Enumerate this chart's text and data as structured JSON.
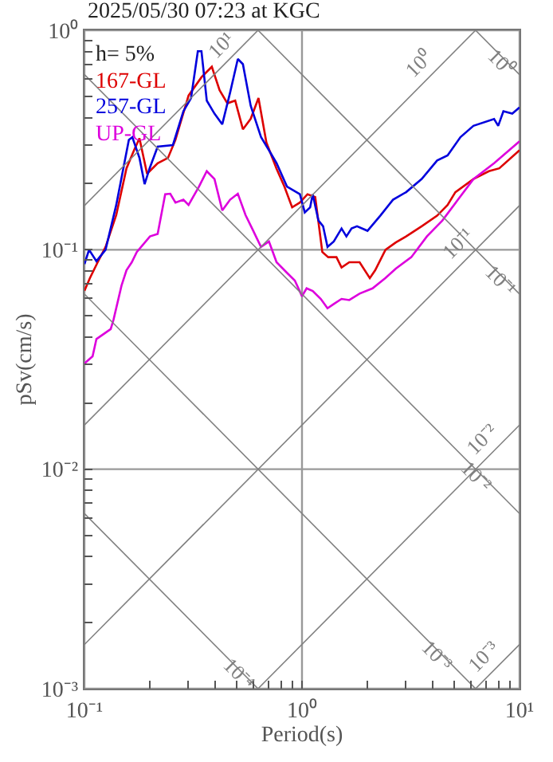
{
  "chart_data": {
    "type": "line",
    "title": "2025/05/30 07:23 at KGC",
    "xlabel": "Period(s)",
    "ylabel": "pSv(cm/s)",
    "annotations": [
      "h= 5%"
    ],
    "log": "xy",
    "grid": true,
    "legend": "top left",
    "xlim": [
      0.1,
      10
    ],
    "ylim": [
      0.001,
      1
    ],
    "xticks": [
      {
        "value": 0.1,
        "label": "10⁻¹"
      },
      {
        "value": 0.2,
        "label": null
      },
      {
        "value": 0.3,
        "label": null
      },
      {
        "value": 0.4,
        "label": null
      },
      {
        "value": 0.5,
        "label": null
      },
      {
        "value": 0.6,
        "label": null
      },
      {
        "value": 0.7,
        "label": null
      },
      {
        "value": 0.8,
        "label": null
      },
      {
        "value": 0.9,
        "label": null
      },
      {
        "value": 1,
        "label": "10⁰"
      },
      {
        "value": 2,
        "label": null
      },
      {
        "value": 3,
        "label": null
      },
      {
        "value": 4,
        "label": null
      },
      {
        "value": 5,
        "label": null
      },
      {
        "value": 6,
        "label": null
      },
      {
        "value": 7,
        "label": null
      },
      {
        "value": 8,
        "label": null
      },
      {
        "value": 9,
        "label": null
      },
      {
        "value": 10,
        "label": "10¹"
      }
    ],
    "yticks": [
      {
        "value": 0.001,
        "label": "10⁻³"
      },
      {
        "value": 0.002,
        "label": null
      },
      {
        "value": 0.003,
        "label": null
      },
      {
        "value": 0.004,
        "label": null
      },
      {
        "value": 0.005,
        "label": null
      },
      {
        "value": 0.006,
        "label": null
      },
      {
        "value": 0.007,
        "label": null
      },
      {
        "value": 0.008,
        "label": null
      },
      {
        "value": 0.009,
        "label": null
      },
      {
        "value": 0.01,
        "label": "10⁻²"
      },
      {
        "value": 0.02,
        "label": null
      },
      {
        "value": 0.03,
        "label": null
      },
      {
        "value": 0.04,
        "label": null
      },
      {
        "value": 0.05,
        "label": null
      },
      {
        "value": 0.06,
        "label": null
      },
      {
        "value": 0.07,
        "label": null
      },
      {
        "value": 0.08,
        "label": null
      },
      {
        "value": 0.09,
        "label": null
      },
      {
        "value": 0.1,
        "label": "10⁻¹"
      },
      {
        "value": 0.2,
        "label": null
      },
      {
        "value": 0.3,
        "label": null
      },
      {
        "value": 0.4,
        "label": null
      },
      {
        "value": 0.5,
        "label": null
      },
      {
        "value": 0.6,
        "label": null
      },
      {
        "value": 0.7,
        "label": null
      },
      {
        "value": 0.8,
        "label": null
      },
      {
        "value": 0.9,
        "label": null
      },
      {
        "value": 1,
        "label": "10⁰"
      }
    ],
    "series": [
      {
        "name": "167-GL",
        "color": "#dd0000",
        "x": [
          0.1,
          0.106,
          0.115,
          0.125,
          0.14,
          0.156,
          0.169,
          0.179,
          0.194,
          0.217,
          0.242,
          0.262,
          0.301,
          0.345,
          0.385,
          0.418,
          0.454,
          0.493,
          0.535,
          0.581,
          0.631,
          0.686,
          0.764,
          0.83,
          0.901,
          0.977,
          1.06,
          1.15,
          1.24,
          1.32,
          1.44,
          1.52,
          1.65,
          1.84,
          2.05,
          2.17,
          2.42,
          2.7,
          3.01,
          3.55,
          4.18,
          4.67,
          5.07,
          6.14,
          7.23,
          8.07,
          10
        ],
        "values": [
          0.065,
          0.0744,
          0.0877,
          0.103,
          0.144,
          0.235,
          0.284,
          0.322,
          0.222,
          0.248,
          0.262,
          0.317,
          0.504,
          0.611,
          0.682,
          0.533,
          0.465,
          0.478,
          0.354,
          0.395,
          0.491,
          0.308,
          0.234,
          0.194,
          0.156,
          0.164,
          0.179,
          0.174,
          0.0977,
          0.0925,
          0.0925,
          0.083,
          0.0877,
          0.0877,
          0.0743,
          0.0807,
          0.1,
          0.108,
          0.115,
          0.128,
          0.143,
          0.16,
          0.183,
          0.21,
          0.228,
          0.235,
          0.284
        ]
      },
      {
        "name": "257-GL",
        "color": "#0000dd",
        "x": [
          0.1,
          0.105,
          0.1135,
          0.125,
          0.14,
          0.16,
          0.166,
          0.179,
          0.189,
          0.199,
          0.217,
          0.255,
          0.285,
          0.309,
          0.332,
          0.345,
          0.365,
          0.396,
          0.43,
          0.467,
          0.507,
          0.535,
          0.581,
          0.648,
          0.705,
          0.764,
          0.853,
          0.978,
          1.03,
          1.09,
          1.12,
          1.19,
          1.25,
          1.31,
          1.4,
          1.52,
          1.6,
          1.69,
          1.79,
          2.0,
          2.29,
          2.62,
          3.01,
          3.55,
          4.18,
          4.67,
          5.35,
          6.14,
          7.64,
          7.98,
          8.43,
          9.26,
          10
        ],
        "values": [
          0.086,
          0.1,
          0.0887,
          0.1,
          0.16,
          0.317,
          0.326,
          0.262,
          0.199,
          0.234,
          0.295,
          0.3,
          0.428,
          0.491,
          0.803,
          0.803,
          0.478,
          0.417,
          0.373,
          0.519,
          0.74,
          0.701,
          0.453,
          0.326,
          0.284,
          0.248,
          0.194,
          0.179,
          0.148,
          0.156,
          0.179,
          0.136,
          0.128,
          0.103,
          0.109,
          0.125,
          0.115,
          0.125,
          0.128,
          0.122,
          0.143,
          0.169,
          0.183,
          0.21,
          0.255,
          0.269,
          0.326,
          0.367,
          0.394,
          0.367,
          0.428,
          0.417,
          0.445
        ]
      },
      {
        "name": "UP-GL",
        "color": "#dd00dd",
        "x": [
          0.1,
          0.109,
          0.1135,
          0.132,
          0.136,
          0.148,
          0.156,
          0.165,
          0.174,
          0.2,
          0.217,
          0.235,
          0.248,
          0.262,
          0.285,
          0.301,
          0.336,
          0.365,
          0.396,
          0.43,
          0.467,
          0.507,
          0.55,
          0.597,
          0.648,
          0.705,
          0.764,
          0.853,
          0.927,
          1.0,
          1.05,
          1.12,
          1.22,
          1.31,
          1.4,
          1.52,
          1.65,
          1.84,
          2.11,
          2.42,
          2.7,
          3.18,
          3.75,
          4.42,
          5.21,
          6.14,
          7.64,
          10
        ],
        "values": [
          0.0303,
          0.0327,
          0.0392,
          0.0435,
          0.048,
          0.0686,
          0.0807,
          0.0877,
          0.0977,
          0.115,
          0.118,
          0.179,
          0.18,
          0.164,
          0.169,
          0.16,
          0.194,
          0.228,
          0.21,
          0.151,
          0.169,
          0.18,
          0.144,
          0.122,
          0.103,
          0.109,
          0.0877,
          0.0785,
          0.0724,
          0.0614,
          0.0667,
          0.0649,
          0.0597,
          0.0541,
          0.0566,
          0.0597,
          0.059,
          0.0631,
          0.0667,
          0.0744,
          0.082,
          0.0925,
          0.115,
          0.136,
          0.169,
          0.21,
          0.248,
          0.312
        ]
      },
      {
        "name": "10¹",
        "color": "#808080",
        "x": [
          0.1,
          0.628
        ],
        "values": [
          0.159,
          1
        ]
      },
      {
        "name": "10⁰",
        "color": "#808080",
        "x": [
          0.1,
          6.28
        ],
        "values": [
          0.0159,
          1
        ]
      },
      {
        "name": "10⁻¹",
        "color": "#808080",
        "x": [
          0.1,
          10
        ],
        "values": [
          0.00159,
          0.159
        ]
      },
      {
        "name": "10⁻²",
        "color": "#808080",
        "x": [
          0.628,
          10
        ],
        "values": [
          0.001,
          0.0159
        ]
      },
      {
        "name": "10⁻³",
        "color": "#808080",
        "x": [
          6.28,
          10
        ],
        "values": [
          0.001,
          0.00159
        ]
      },
      {
        "name": "10⁰",
        "color": "#808080",
        "x": [
          6.28,
          10
        ],
        "values": [
          1,
          0.628
        ]
      },
      {
        "name": "10⁻¹",
        "color": "#808080",
        "x": [
          0.628,
          10
        ],
        "values": [
          1,
          0.0628
        ]
      },
      {
        "name": "10⁻²",
        "color": "#808080",
        "x": [
          0.1,
          10
        ],
        "values": [
          0.628,
          0.00628
        ]
      },
      {
        "name": "10⁻³",
        "color": "#808080",
        "x": [
          0.1,
          6.28
        ],
        "values": [
          0.0628,
          0.001
        ]
      },
      {
        "name": "10⁻⁴",
        "color": "#808080",
        "x": [
          0.1,
          0.628
        ],
        "values": [
          0.00628,
          0.001
        ]
      }
    ]
  }
}
